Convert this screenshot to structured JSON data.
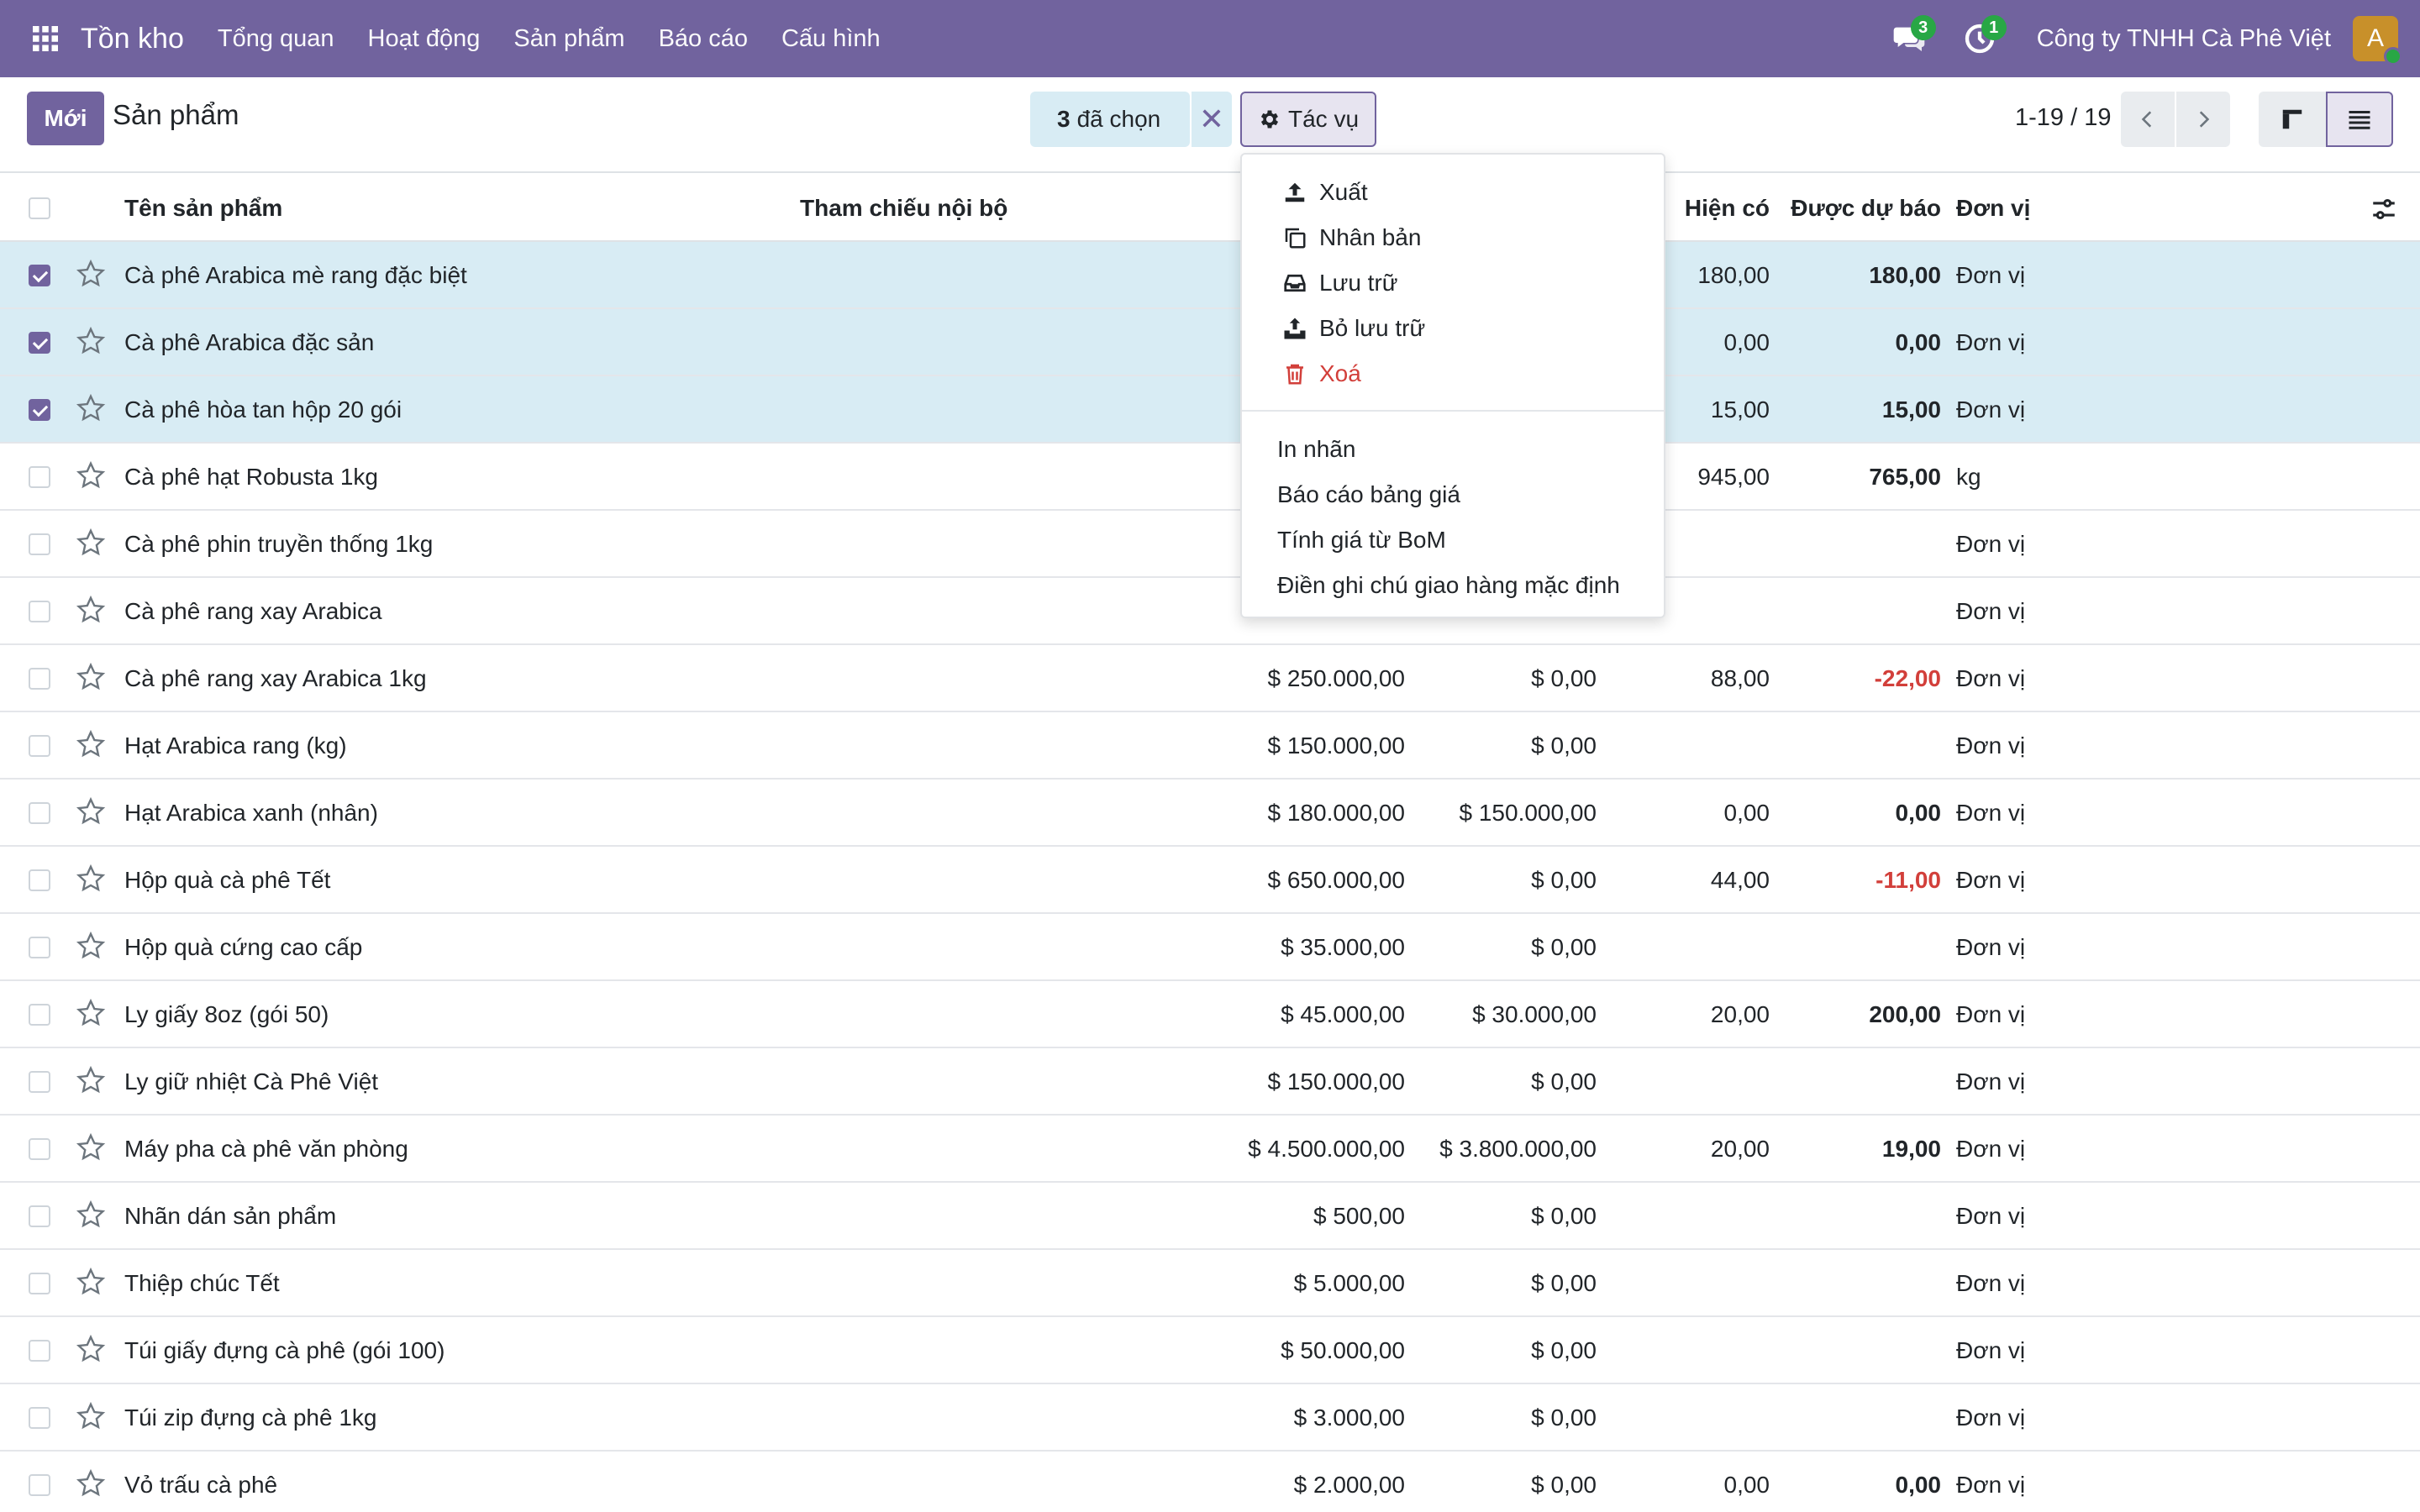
{
  "navbar": {
    "app_name": "Tồn kho",
    "menu": [
      "Tổng quan",
      "Hoạt động",
      "Sản phẩm",
      "Báo cáo",
      "Cấu hình"
    ],
    "messages_count": "3",
    "activities_count": "1",
    "company": "Công ty TNHH Cà Phê Việt",
    "avatar_letter": "A"
  },
  "control": {
    "new_label": "Mới",
    "breadcrumb": "Sản phẩm",
    "selected_count": "3",
    "selected_label": "đã chọn",
    "actions_label": "Tác vụ",
    "pager": "1-19 / 19"
  },
  "dropdown": {
    "icon_items": [
      {
        "label": "Xuất",
        "icon": "upload-icon"
      },
      {
        "label": "Nhân bản",
        "icon": "copy-icon"
      },
      {
        "label": "Lưu trữ",
        "icon": "archive-icon"
      },
      {
        "label": "Bỏ lưu trữ",
        "icon": "unarchive-icon"
      },
      {
        "label": "Xoá",
        "icon": "trash-icon"
      }
    ],
    "plain_items": [
      "In nhãn",
      "Báo cáo bảng giá",
      "Tính giá từ BoM",
      "Điền ghi chú giao hàng mặc định"
    ]
  },
  "table": {
    "headers": {
      "name": "Tên sản phẩm",
      "ref": "Tham chiếu nội bộ",
      "on_hand": "Hiện có",
      "forecast": "Được dự báo",
      "uom": "Đơn vị"
    },
    "rows": [
      {
        "name": "Cà phê Arabica mè rang đặc biệt",
        "price": "",
        "cost": "",
        "on_hand": "180,00",
        "forecast": "180,00",
        "uom": "Đơn vị",
        "selected": true
      },
      {
        "name": "Cà phê Arabica đặc sản",
        "price": "",
        "cost": "",
        "on_hand": "0,00",
        "forecast": "0,00",
        "uom": "Đơn vị",
        "selected": true
      },
      {
        "name": "Cà phê hòa tan hộp 20 gói",
        "price": "",
        "cost": "",
        "on_hand": "15,00",
        "forecast": "15,00",
        "uom": "Đơn vị",
        "selected": true
      },
      {
        "name": "Cà phê hạt Robusta 1kg",
        "price": "",
        "cost": "",
        "on_hand": "945,00",
        "forecast": "765,00",
        "uom": "kg",
        "selected": false
      },
      {
        "name": "Cà phê phin truyền thống 1kg",
        "price": "",
        "cost": "",
        "on_hand": "",
        "forecast": "",
        "uom": "Đơn vị",
        "selected": false
      },
      {
        "name": "Cà phê rang xay Arabica",
        "price": "",
        "cost": "",
        "on_hand": "",
        "forecast": "",
        "uom": "Đơn vị",
        "selected": false
      },
      {
        "name": "Cà phê rang xay Arabica 1kg",
        "price": "$ 250.000,00",
        "cost": "$ 0,00",
        "on_hand": "88,00",
        "forecast": "-22,00",
        "uom": "Đơn vị",
        "selected": false
      },
      {
        "name": "Hạt Arabica rang (kg)",
        "price": "$ 150.000,00",
        "cost": "$ 0,00",
        "on_hand": "",
        "forecast": "",
        "uom": "Đơn vị",
        "selected": false
      },
      {
        "name": "Hạt Arabica xanh (nhân)",
        "price": "$ 180.000,00",
        "cost": "$ 150.000,00",
        "on_hand": "0,00",
        "forecast": "0,00",
        "uom": "Đơn vị",
        "selected": false
      },
      {
        "name": "Hộp quà cà phê Tết",
        "price": "$ 650.000,00",
        "cost": "$ 0,00",
        "on_hand": "44,00",
        "forecast": "-11,00",
        "uom": "Đơn vị",
        "selected": false
      },
      {
        "name": "Hộp quà cứng cao cấp",
        "price": "$ 35.000,00",
        "cost": "$ 0,00",
        "on_hand": "",
        "forecast": "",
        "uom": "Đơn vị",
        "selected": false
      },
      {
        "name": "Ly giấy 8oz (gói 50)",
        "price": "$ 45.000,00",
        "cost": "$ 30.000,00",
        "on_hand": "20,00",
        "forecast": "200,00",
        "uom": "Đơn vị",
        "selected": false
      },
      {
        "name": "Ly giữ nhiệt Cà Phê Việt",
        "price": "$ 150.000,00",
        "cost": "$ 0,00",
        "on_hand": "",
        "forecast": "",
        "uom": "Đơn vị",
        "selected": false
      },
      {
        "name": "Máy pha cà phê văn phòng",
        "price": "$ 4.500.000,00",
        "cost": "$ 3.800.000,00",
        "on_hand": "20,00",
        "forecast": "19,00",
        "uom": "Đơn vị",
        "selected": false
      },
      {
        "name": "Nhãn dán sản phẩm",
        "price": "$ 500,00",
        "cost": "$ 0,00",
        "on_hand": "",
        "forecast": "",
        "uom": "Đơn vị",
        "selected": false
      },
      {
        "name": "Thiệp chúc Tết",
        "price": "$ 5.000,00",
        "cost": "$ 0,00",
        "on_hand": "",
        "forecast": "",
        "uom": "Đơn vị",
        "selected": false
      },
      {
        "name": "Túi giấy đựng cà phê (gói 100)",
        "price": "$ 50.000,00",
        "cost": "$ 0,00",
        "on_hand": "",
        "forecast": "",
        "uom": "Đơn vị",
        "selected": false
      },
      {
        "name": "Túi zip đựng cà phê 1kg",
        "price": "$ 3.000,00",
        "cost": "$ 0,00",
        "on_hand": "",
        "forecast": "",
        "uom": "Đơn vị",
        "selected": false
      },
      {
        "name": "Vỏ trấu cà phê",
        "price": "$ 2.000,00",
        "cost": "$ 0,00",
        "on_hand": "0,00",
        "forecast": "0,00",
        "uom": "Đơn vị",
        "selected": false
      }
    ]
  },
  "colors": {
    "brand": "#71639e",
    "selected_row": "#d8ecf4",
    "negative": "#d23f3a",
    "badge": "#28a745"
  }
}
